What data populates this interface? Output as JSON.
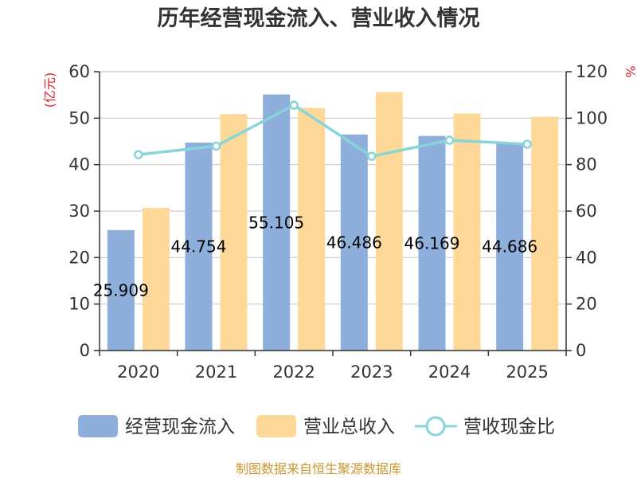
{
  "chart_data": {
    "type": "bar",
    "title": "历年经营现金流入、营业收入情况",
    "categories": [
      "2020",
      "2021",
      "2022",
      "2023",
      "2024",
      "2025"
    ],
    "series": [
      {
        "name": "经营现金流入",
        "type": "bar",
        "axis": "left",
        "color": "#8eaedb",
        "values": [
          25.909,
          44.754,
          55.105,
          46.486,
          46.169,
          44.686
        ],
        "labels": [
          "25.909",
          "44.754",
          "55.105",
          "46.486",
          "46.169",
          "44.686"
        ]
      },
      {
        "name": "营业总收入",
        "type": "bar",
        "axis": "left",
        "color": "#fed898",
        "values": [
          30.7,
          50.9,
          52.2,
          55.6,
          51.0,
          50.3
        ]
      },
      {
        "name": "营收现金比",
        "type": "line",
        "axis": "right",
        "color": "#88d4d8",
        "values": [
          84.3,
          88.0,
          105.6,
          83.6,
          90.5,
          88.8
        ]
      }
    ],
    "yleft": {
      "label": "(亿元)",
      "min": 0,
      "max": 60,
      "step": 10,
      "ticks": [
        "0",
        "10",
        "20",
        "30",
        "40",
        "50",
        "60"
      ]
    },
    "yright": {
      "label": "%",
      "min": 0,
      "max": 120,
      "step": 20,
      "ticks": [
        "0",
        "20",
        "40",
        "60",
        "80",
        "100",
        "120"
      ]
    },
    "grid": true,
    "legend_position": "bottom",
    "axis_unit_color": "#e0202a",
    "source": "制图数据来自恒生聚源数据库",
    "source_color": "#c8962e"
  }
}
